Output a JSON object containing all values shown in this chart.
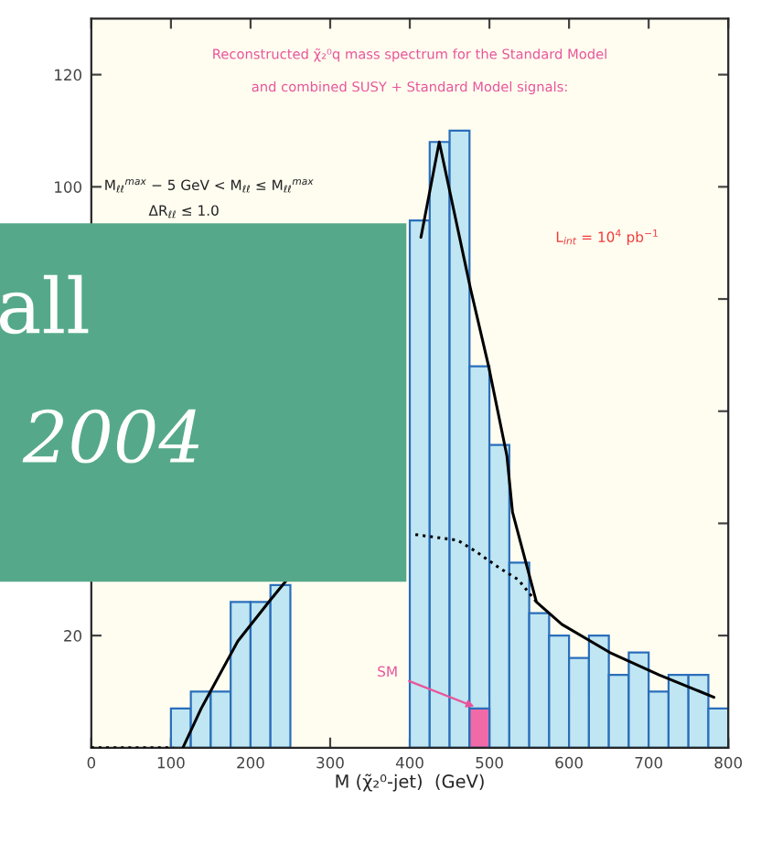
{
  "chart_data": {
    "type": "histogram",
    "xlabel": "M (χ̃₂⁰-jet)  (GeV)",
    "bins": [
      100,
      125,
      150,
      175,
      200,
      225,
      250,
      275,
      300,
      325,
      350,
      375,
      400,
      425,
      450,
      475,
      500,
      525,
      550,
      575,
      600,
      625,
      650,
      675,
      700,
      725,
      750,
      775,
      800
    ],
    "series": [
      {
        "color": "#bfe6f2",
        "values": [
          7,
          10,
          10,
          26,
          26,
          29,
          null,
          null,
          null,
          null,
          null,
          null,
          94,
          108,
          110,
          68,
          54,
          33,
          24,
          20,
          16,
          20,
          13,
          17,
          10,
          13,
          13,
          7
        ]
      },
      {
        "color": "#f06aa8",
        "values": [
          null,
          null,
          null,
          null,
          null,
          null,
          null,
          null,
          null,
          null,
          null,
          null,
          null,
          null,
          null,
          7,
          null,
          null,
          null,
          null,
          null,
          null,
          null,
          null,
          null,
          null,
          null,
          null
        ]
      },
      {
        "type": "line",
        "color": "#000000",
        "line_style": "solid",
        "x": [
          115,
          138,
          184,
          223,
          246,
          320,
          414,
          437,
          476,
          499,
          522,
          529,
          559,
          591,
          651,
          713,
          782
        ],
        "values": [
          0,
          7,
          19,
          26,
          30,
          null,
          91,
          108,
          82,
          68,
          52,
          42,
          26,
          22,
          17,
          13,
          9
        ]
      },
      {
        "type": "line",
        "color": "#000000",
        "line_style": "dotted",
        "x": [
          0,
          103,
          250,
          407,
          460,
          483,
          513,
          536,
          559
        ],
        "values": [
          0,
          0,
          null,
          38,
          37,
          35,
          32,
          30,
          26
        ]
      }
    ],
    "xlim": [
      0,
      800
    ],
    "ylim": [
      0,
      130
    ],
    "xticks": [
      0,
      100,
      200,
      300,
      400,
      500,
      600,
      700,
      800
    ],
    "yticks": [
      20,
      {
        "value": 40,
        "label": null
      },
      {
        "value": 60,
        "label": null
      },
      {
        "value": 80,
        "label": null
      },
      100,
      120
    ],
    "annotations": [
      "Reconstructed χ̃₂⁰q mass spectrum for the Standard Model",
      "and combined SUSY + Standard Model signals:",
      "M$_{ℓℓ}$$^{max}$ − 5 GeV < M$_{ℓℓ}$ ≤ M$_{ℓℓ}$$^{max}$",
      "ΔR$_{ℓℓ}$ ≤ 1.0",
      "L$_{int}$ = 10$^{4}$ pb$^{−1}$",
      "all",
      "2004",
      {
        "text": "SM",
        "x": 487,
        "y": 7
      }
    ],
    "grid": false,
    "legend": false,
    "marker": "none"
  }
}
